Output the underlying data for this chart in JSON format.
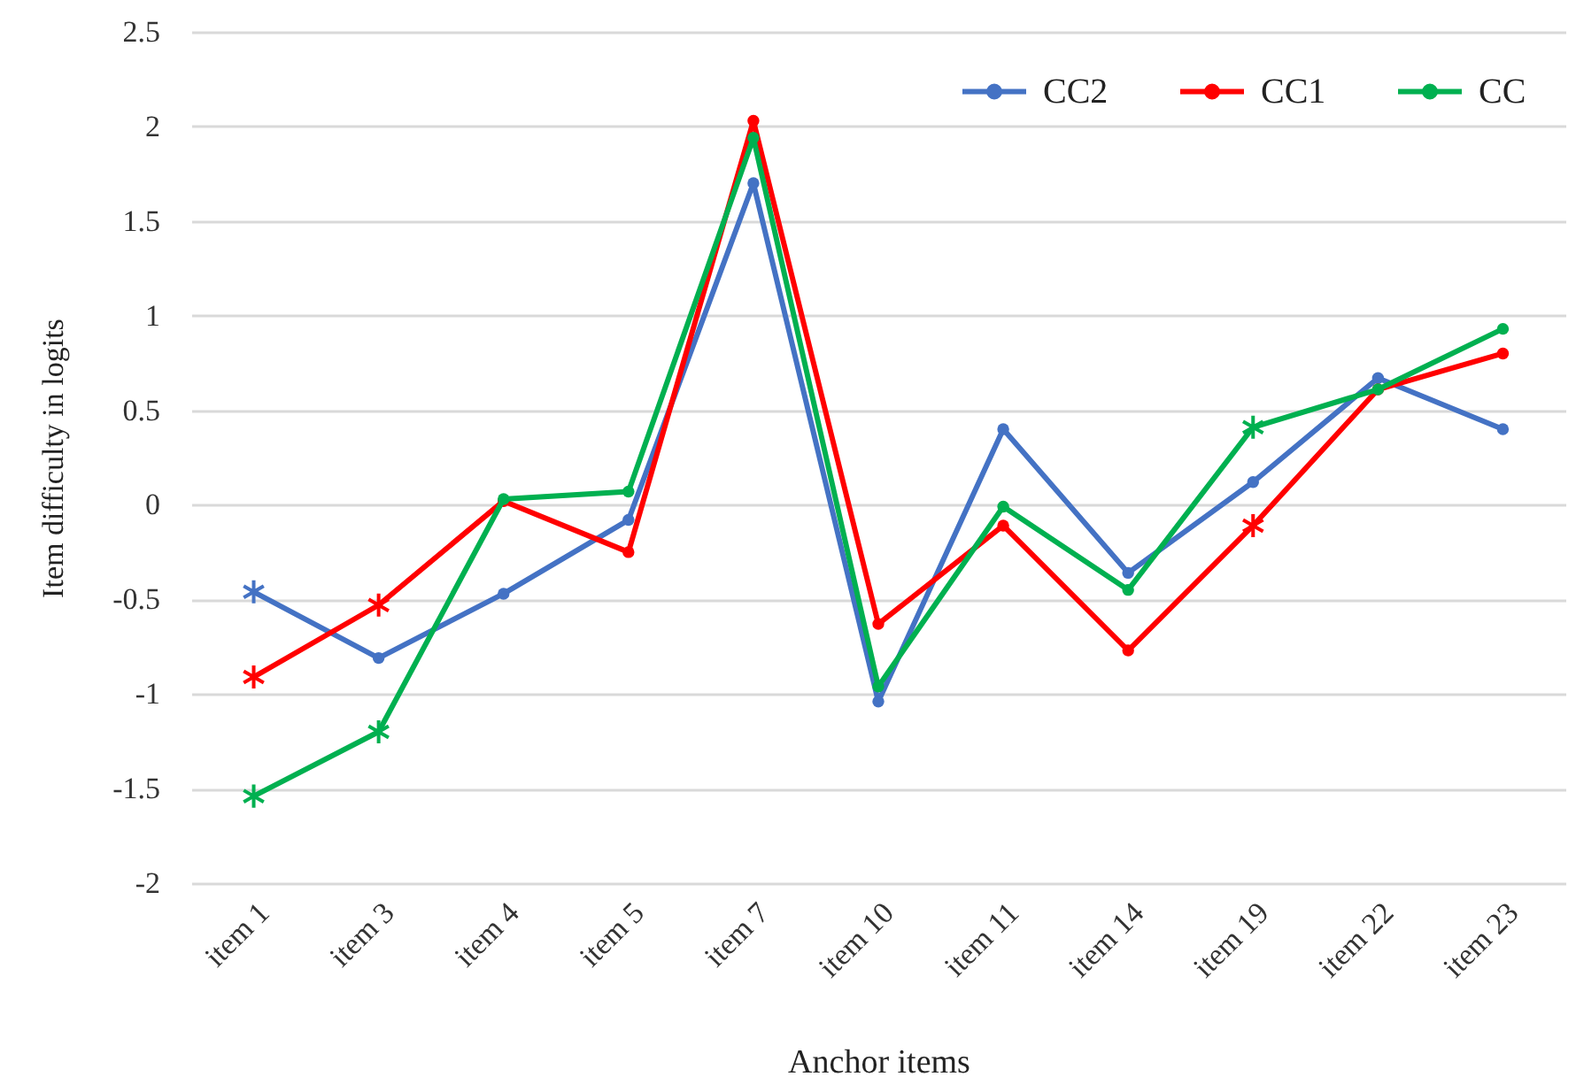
{
  "chart_data": {
    "type": "line",
    "xlabel": "Anchor items",
    "ylabel": "Item difficulty in logits",
    "categories": [
      "item 1",
      "item 3",
      "item 4",
      "item 5",
      "item 7",
      "item 10",
      "item 11",
      "item 14",
      "item 19",
      "item 22",
      "item 23"
    ],
    "series": [
      {
        "name": "CC2",
        "color": "#4472c4",
        "marker": "circle",
        "values": [
          -0.46,
          -0.81,
          -0.47,
          -0.08,
          1.7,
          -1.04,
          0.4,
          -0.36,
          0.12,
          0.67,
          0.4
        ]
      },
      {
        "name": "CC1",
        "color": "#ff0000",
        "marker": "circle",
        "values": [
          -0.91,
          -0.53,
          0.02,
          -0.25,
          2.03,
          -0.63,
          -0.11,
          -0.77,
          -0.11,
          0.61,
          0.8
        ]
      },
      {
        "name": "CC",
        "color": "#00b050",
        "marker": "circle",
        "values": [
          -1.54,
          -1.2,
          0.03,
          0.07,
          1.94,
          -0.96,
          -0.01,
          -0.45,
          0.41,
          0.61,
          0.93
        ]
      },
      {
        "type": "scatter",
        "color": "#4472c4",
        "marker": "cross",
        "values": [
          -0.46,
          null,
          null,
          null,
          null,
          null,
          null,
          null,
          null,
          null,
          null
        ]
      },
      {
        "type": "scatter",
        "color": "#ff0000",
        "marker": "cross",
        "values": [
          -0.91,
          -0.53,
          null,
          null,
          null,
          null,
          null,
          null,
          -0.11,
          null,
          null
        ]
      },
      {
        "type": "scatter",
        "color": "#00b050",
        "marker": "cross",
        "values": [
          -1.54,
          -1.2,
          null,
          null,
          null,
          null,
          null,
          null,
          0.41,
          null,
          null
        ]
      }
    ],
    "ylim": [
      -2,
      2.5
    ],
    "yticks": [
      -2,
      -1.5,
      -1,
      -0.5,
      0,
      0.5,
      1,
      1.5,
      2,
      2.5
    ],
    "grid": "y",
    "legend": "top right",
    "line_style": "solid"
  }
}
